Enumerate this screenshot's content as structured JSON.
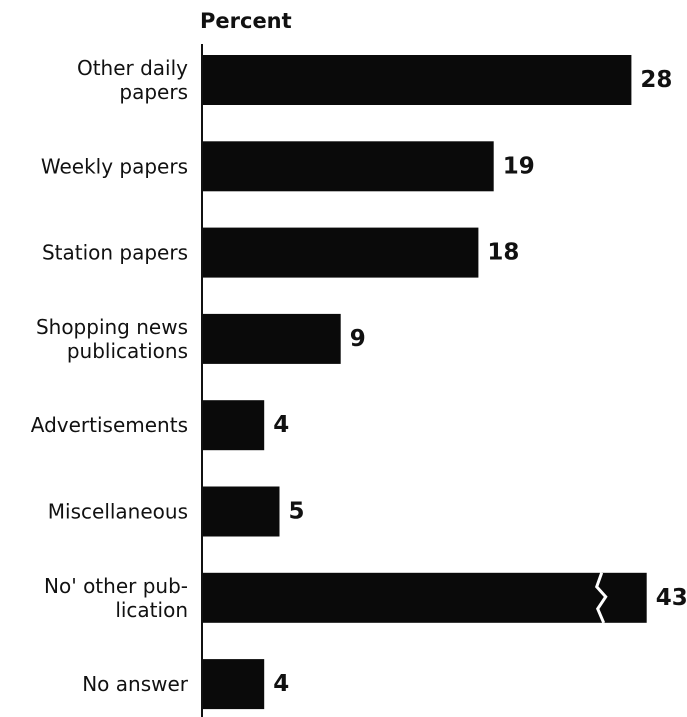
{
  "chart_data": {
    "type": "bar",
    "orientation": "horizontal",
    "title": "",
    "ylabel": "Percent",
    "xlabel": "",
    "categories": [
      "Other daily papers",
      "Weekly papers",
      "Station papers",
      "Shopping news publications",
      "Advertisements",
      "Miscellaneous",
      "No' other publication",
      "No answer"
    ],
    "category_lines": [
      [
        "Other daily",
        "papers"
      ],
      [
        "Weekly papers"
      ],
      [
        "Station papers"
      ],
      [
        "Shopping news",
        "publications"
      ],
      [
        "Advertisements"
      ],
      [
        "Miscellaneous"
      ],
      [
        "No' other pub-",
        "lication"
      ],
      [
        "No answer"
      ]
    ],
    "values": [
      28,
      19,
      18,
      9,
      4,
      5,
      43,
      4
    ],
    "value_labels": [
      "28",
      "19",
      "18",
      "9",
      "4",
      "5",
      "43",
      "4"
    ],
    "broken_bars": [
      6
    ],
    "scale_cap": 28,
    "grid": false,
    "legend": "none",
    "bar_color": "#0a0a0a",
    "axis_color": "#111111"
  }
}
